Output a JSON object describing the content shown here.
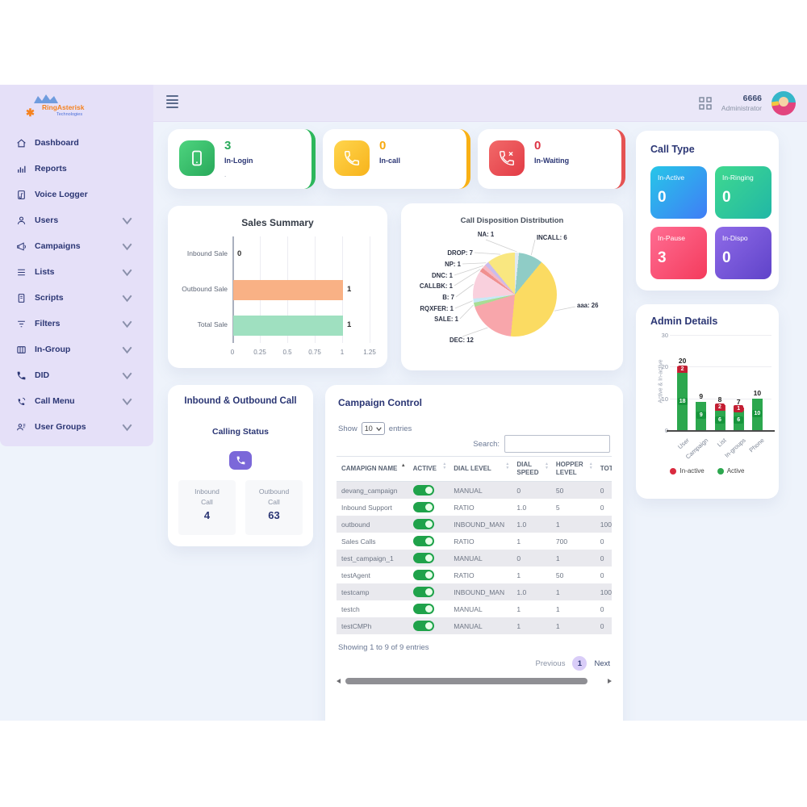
{
  "topbar": {
    "user_id": "6666",
    "user_role": "Administrator"
  },
  "sidebar": {
    "logo_title": "RingAsterisk",
    "logo_subtitle": "Technologies",
    "items": [
      {
        "label": "Dashboard",
        "icon": "home-icon",
        "has_submenu": false
      },
      {
        "label": "Reports",
        "icon": "bar-chart-icon",
        "has_submenu": false
      },
      {
        "label": "Voice Logger",
        "icon": "voice-note-icon",
        "has_submenu": false
      },
      {
        "label": "Users",
        "icon": "user-icon",
        "has_submenu": true
      },
      {
        "label": "Campaigns",
        "icon": "megaphone-icon",
        "has_submenu": true
      },
      {
        "label": "Lists",
        "icon": "list-icon",
        "has_submenu": true
      },
      {
        "label": "Scripts",
        "icon": "script-icon",
        "has_submenu": true
      },
      {
        "label": "Filters",
        "icon": "filter-icon",
        "has_submenu": true
      },
      {
        "label": "In-Group",
        "icon": "in-group-icon",
        "has_submenu": true
      },
      {
        "label": "DID",
        "icon": "phone-icon",
        "has_submenu": true
      },
      {
        "label": "Call Menu",
        "icon": "call-menu-icon",
        "has_submenu": true
      },
      {
        "label": "User Groups",
        "icon": "user-groups-icon",
        "has_submenu": true
      }
    ]
  },
  "stat_cards": [
    {
      "label": "In-Login",
      "value": "3",
      "icon": "mobile-icon",
      "color": "#2eb85c",
      "note": "."
    },
    {
      "label": "In-call",
      "value": "0",
      "icon": "phone-icon",
      "color": "#f9b115",
      "note": ""
    },
    {
      "label": "In-Waiting",
      "value": "0",
      "icon": "phone-missed-icon",
      "color": "#e55353",
      "note": ""
    }
  ],
  "call_type": {
    "title": "Call Type",
    "tiles": [
      {
        "label": "In-Active",
        "value": "0"
      },
      {
        "label": "In-Ringing",
        "value": "0"
      },
      {
        "label": "In-Pause",
        "value": "3"
      },
      {
        "label": "In-Dispo",
        "value": "0"
      }
    ]
  },
  "chart_data": [
    {
      "type": "bar",
      "orientation": "horizontal",
      "title": "Sales Summary",
      "categories": [
        "Inbound Sale",
        "Outbound Sale",
        "Total Sale"
      ],
      "values": [
        0,
        1,
        1
      ],
      "bar_colors": [
        "#f9b185",
        "#f9b185",
        "#9fe0c0"
      ],
      "xlim": [
        0,
        1.25
      ],
      "xticks": [
        0,
        0.25,
        0.5,
        0.75,
        1,
        1.25
      ],
      "grid": true
    },
    {
      "type": "pie",
      "title": "Call Disposition Distribution",
      "slices": [
        {
          "label": "NA",
          "value": 1,
          "color": "#dfe9f2"
        },
        {
          "label": "INCALL",
          "value": 6,
          "color": "#8fccc6"
        },
        {
          "label": "aaa",
          "value": 26,
          "color": "#fbdb62"
        },
        {
          "label": "DEC",
          "value": 12,
          "color": "#f8a6ab"
        },
        {
          "label": "SALE",
          "value": 1,
          "color": "#a9dd94"
        },
        {
          "label": "RQXFER",
          "value": 1,
          "color": "#c8e8f5"
        },
        {
          "label": "B",
          "value": 7,
          "color": "#f9d0dd"
        },
        {
          "label": "CALLBK",
          "value": 1,
          "color": "#f0908f"
        },
        {
          "label": "DNC",
          "value": 1,
          "color": "#f5b8c4"
        },
        {
          "label": "NP",
          "value": 1,
          "color": "#cabcec"
        },
        {
          "label": "DROP",
          "value": 7,
          "color": "#f9e780"
        }
      ]
    },
    {
      "type": "bar",
      "stacked": true,
      "title": "Admin Details",
      "ylabel": "Active & In-active",
      "categories": [
        "User",
        "Campaign",
        "List",
        "In-groups",
        "Phone"
      ],
      "series": [
        {
          "name": "Active",
          "color": "#2ca74e",
          "values": [
            18,
            9,
            6,
            6,
            10
          ]
        },
        {
          "name": "In-active",
          "color": "#d92b3f",
          "values": [
            2,
            0,
            2,
            1,
            0
          ]
        }
      ],
      "totals": [
        20,
        9,
        8,
        7,
        10
      ],
      "ylim": [
        0,
        30
      ],
      "yticks": [
        0,
        10,
        20,
        30
      ],
      "legend": [
        {
          "label": "In-active",
          "color": "#d92b3f"
        },
        {
          "label": "Active",
          "color": "#2ca74e"
        }
      ]
    }
  ],
  "inbound_outbound": {
    "title": "Inbound & Outbound Call",
    "subtitle": "Calling Status",
    "boxes": [
      {
        "label": "Inbound Call",
        "value": "4"
      },
      {
        "label": "Outbound Call",
        "value": "63"
      }
    ]
  },
  "campaign_control": {
    "title": "Campaign Control",
    "show_label": "Show",
    "entries_select": "10",
    "entries_label": "entries",
    "search_label": "Search:",
    "search_value": "",
    "columns": [
      "CAMAPIGN NAME",
      "ACTIVE",
      "DIAL LEVEL",
      "DIAL SPEED",
      "HOPPER LEVEL",
      "TOTAL LEADS"
    ],
    "rows": [
      {
        "name": "devang_campaign",
        "active": true,
        "dial_level": "MANUAL",
        "dial_speed": "0",
        "hopper_level": "50",
        "total_leads": "0"
      },
      {
        "name": "Inbound Support",
        "active": true,
        "dial_level": "RATIO",
        "dial_speed": "1.0",
        "hopper_level": "5",
        "total_leads": "0"
      },
      {
        "name": "outbound",
        "active": true,
        "dial_level": "INBOUND_MAN",
        "dial_speed": "1.0",
        "hopper_level": "1",
        "total_leads": "100"
      },
      {
        "name": "Sales Calls",
        "active": true,
        "dial_level": "RATIO",
        "dial_speed": "1",
        "hopper_level": "700",
        "total_leads": "0"
      },
      {
        "name": "test_campaign_1",
        "active": true,
        "dial_level": "MANUAL",
        "dial_speed": "0",
        "hopper_level": "1",
        "total_leads": "0"
      },
      {
        "name": "testAgent",
        "active": true,
        "dial_level": "RATIO",
        "dial_speed": "1",
        "hopper_level": "50",
        "total_leads": "0"
      },
      {
        "name": "testcamp",
        "active": true,
        "dial_level": "INBOUND_MAN",
        "dial_speed": "1.0",
        "hopper_level": "1",
        "total_leads": "100"
      },
      {
        "name": "testch",
        "active": true,
        "dial_level": "MANUAL",
        "dial_speed": "1",
        "hopper_level": "1",
        "total_leads": "0"
      },
      {
        "name": "testCMPh",
        "active": true,
        "dial_level": "MANUAL",
        "dial_speed": "1",
        "hopper_level": "1",
        "total_leads": "0"
      }
    ],
    "footer": "Showing 1 to 9 of 9 entries",
    "pagination": {
      "previous": "Previous",
      "current": "1",
      "next": "Next"
    }
  }
}
